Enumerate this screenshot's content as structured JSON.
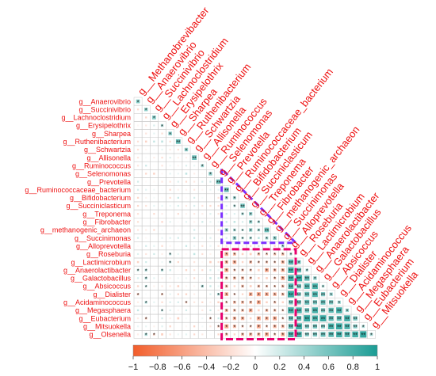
{
  "chart_data": {
    "type": "heatmap",
    "shape": "lower-triangle correlation matrix",
    "genera": [
      "g__Methanobrevibacter",
      "g__Anaerovibrio",
      "g__Succinivibrio",
      "g__Lachnoclostridium",
      "g__Erysipelothrix",
      "g__Sharpea",
      "g__Ruthenibacterium",
      "g__Schwartzia",
      "g__Allisonella",
      "g__Ruminococcus",
      "g__Selenomonas",
      "g__Prevotella",
      "g__Ruminococcaceae_bacterium",
      "g__Bifidobacterium",
      "g__Succiniclasticum",
      "g__Treponema",
      "g__Fibrobacter",
      "g__methanogenic_archaeon",
      "g__Succinimonas",
      "g__Alloprevotella",
      "g__Roseburia",
      "g__Lactimicrobium",
      "g__Anaerolactibacter",
      "g__Galactobacillus",
      "g__Absicoccus",
      "g__Dialister",
      "g__Acidaminococcus",
      "g__Megasphaera",
      "g__Eubacterium",
      "g__Mitsuokella",
      "g__Olsenella"
    ],
    "row_labels": [
      "g__Anaerovibrio",
      "g__Succinivibrio",
      "g__Lachnoclostridium",
      "g__Erysipelothrix",
      "g__Sharpea",
      "g__Ruthenibacterium",
      "g__Schwartzia",
      "g__Allisonella",
      "g__Ruminococcus",
      "g__Selenomonas",
      "g__Prevotella",
      "g__Ruminococcaceae_bacterium",
      "g__Bifidobacterium",
      "g__Succiniclasticum",
      "g__Treponema",
      "g__Fibrobacter",
      "g__methanogenic_archaeon",
      "g__Succinimonas",
      "g__Alloprevotella",
      "g__Roseburia",
      "g__Lactimicrobium",
      "g__Anaerolactibacter",
      "g__Galactobacillus",
      "g__Absicoccus",
      "g__Dialister",
      "g__Acidaminococcus",
      "g__Megasphaera",
      "g__Eubacterium",
      "g__Mitsuokella",
      "g__Olsenella"
    ],
    "column_labels": [
      "g__Methanobrevibacter",
      "g__Anaerovibrio",
      "g__Succinivibrio",
      "g__Lachnoclostridium",
      "g__Erysipelothrix",
      "g__Sharpea",
      "g__Ruthenibacterium",
      "g__Schwartzia",
      "g__Allisonella",
      "g__Ruminococcus",
      "g__Selenomonas",
      "g__Prevotella",
      "g__Ruminococcaceae_bacterium",
      "g__Bifidobacterium",
      "g__Succiniclasticum",
      "g__Treponema",
      "g__Fibrobacter",
      "g__methanogenic_archaeon",
      "g__Succinimonas",
      "g__Alloprevotella",
      "g__Roseburia",
      "g__Lactimicrobium",
      "g__Anaerolactibacter",
      "g__Galactobacillus",
      "g__Absicoccus",
      "g__Dialister",
      "g__Acidaminococcus",
      "g__Megasphaera",
      "g__Eubacterium",
      "g__Mitsuokella"
    ],
    "colorbar": {
      "range": [
        -1,
        1
      ],
      "ticks": [
        "−1",
        "−0.8",
        "−0.6",
        "−0.4",
        "−0.2",
        "0",
        "0.2",
        "0.4",
        "0.6",
        "0.8",
        "1"
      ],
      "low_color": "#f25d2a",
      "mid_color": "#ffffff",
      "high_color": "#1a9c94"
    },
    "highlight_boxes": [
      {
        "color": "#7b2fff",
        "shape": "triangle",
        "rows": [
          "g__Ruminococcaceae_bacterium",
          "g__Succinimonas"
        ],
        "columns": [
          "g__Prevotella",
          "g__methanogenic_archaeon"
        ]
      },
      {
        "color": "#e8006e",
        "shape": "rectangle",
        "rows": [
          "g__Roseburia",
          "g__Olsenella"
        ],
        "columns": [
          "g__Prevotella",
          "g__Alloprevotella"
        ]
      }
    ],
    "significance_marker": "*",
    "grid": true,
    "legend": "bottom"
  },
  "palette": {
    "label_color": "#ee1111",
    "cell_border": "#c8c8c8"
  }
}
